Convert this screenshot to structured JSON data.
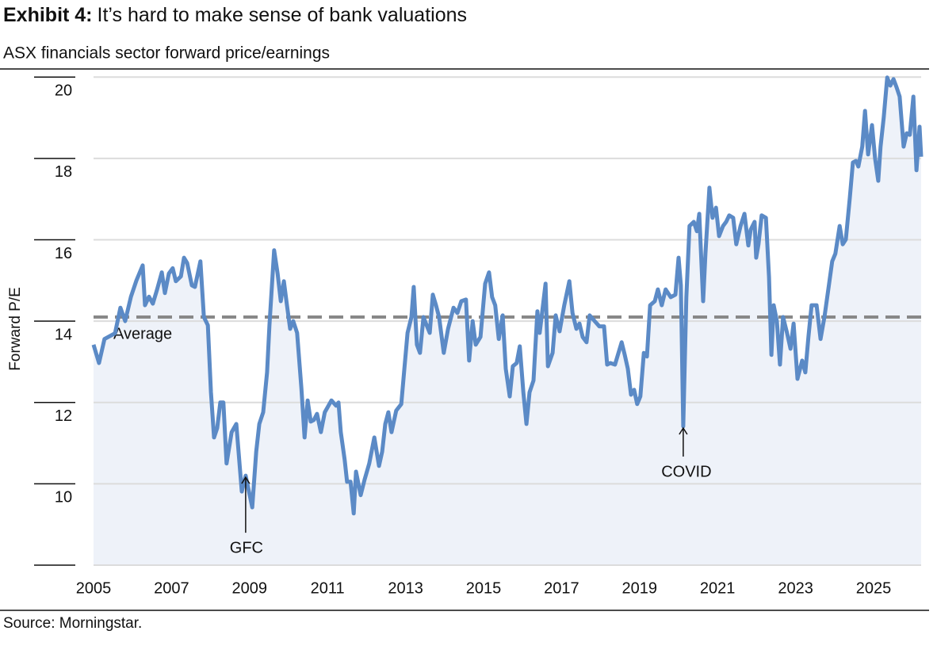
{
  "chart_data": {
    "type": "line",
    "title_lead": "Exhibit 4:",
    "title": "It’s hard to make sense of bank valuations",
    "subtitle": "ASX financials sector forward price/earnings",
    "y_label": "Forward P/E",
    "source": "Source: Morningstar.",
    "xlim": [
      2005,
      2026.22
    ],
    "xticks": [
      2005,
      2007,
      2009,
      2011,
      2013,
      2015,
      2017,
      2019,
      2021,
      2023,
      2025
    ],
    "ylim": [
      8,
      20.2
    ],
    "yticks": [
      10,
      12,
      14,
      16,
      18,
      20
    ],
    "grid": true,
    "average": {
      "label": "Average",
      "value": 14.1,
      "color": "#888888"
    },
    "annotations": [
      {
        "text": "GFC",
        "x": 2008.9,
        "y": 10.2
      },
      {
        "text": "COVID",
        "x": 2020.12,
        "y": 11.41
      }
    ],
    "series": [
      {
        "name": "Forward P/E",
        "color": "#5b8ac6",
        "fill": "#eef2f9",
        "x": [
          2005.0,
          2005.14,
          2005.28,
          2005.55,
          2005.69,
          2005.81,
          2005.96,
          2006.1,
          2006.26,
          2006.32,
          2006.42,
          2006.52,
          2006.63,
          2006.75,
          2006.83,
          2006.93,
          2007.03,
          2007.11,
          2007.24,
          2007.32,
          2007.4,
          2007.52,
          2007.6,
          2007.74,
          2007.83,
          2007.93,
          2008.01,
          2008.09,
          2008.17,
          2008.25,
          2008.33,
          2008.41,
          2008.54,
          2008.66,
          2008.8,
          2008.9,
          2009.07,
          2009.17,
          2009.25,
          2009.35,
          2009.45,
          2009.51,
          2009.63,
          2009.72,
          2009.8,
          2009.88,
          2009.96,
          2010.04,
          2010.12,
          2010.22,
          2010.33,
          2010.41,
          2010.49,
          2010.57,
          2010.65,
          2010.73,
          2010.83,
          2010.93,
          2011.1,
          2011.22,
          2011.28,
          2011.34,
          2011.44,
          2011.5,
          2011.59,
          2011.67,
          2011.73,
          2011.85,
          2011.95,
          2012.07,
          2012.2,
          2012.32,
          2012.4,
          2012.48,
          2012.56,
          2012.64,
          2012.76,
          2012.89,
          2012.97,
          2013.05,
          2013.15,
          2013.21,
          2013.29,
          2013.37,
          2013.46,
          2013.54,
          2013.62,
          2013.7,
          2013.78,
          2013.86,
          2013.98,
          2014.09,
          2014.23,
          2014.33,
          2014.43,
          2014.55,
          2014.63,
          2014.72,
          2014.8,
          2014.92,
          2015.04,
          2015.14,
          2015.22,
          2015.3,
          2015.39,
          2015.49,
          2015.57,
          2015.67,
          2015.75,
          2015.85,
          2015.93,
          2016.02,
          2016.1,
          2016.18,
          2016.28,
          2016.38,
          2016.44,
          2016.59,
          2016.65,
          2016.77,
          2016.85,
          2016.95,
          2017.07,
          2017.2,
          2017.28,
          2017.38,
          2017.46,
          2017.54,
          2017.64,
          2017.72,
          2017.85,
          2017.97,
          2018.09,
          2018.17,
          2018.25,
          2018.37,
          2018.46,
          2018.54,
          2018.62,
          2018.7,
          2018.78,
          2018.86,
          2018.94,
          2019.02,
          2019.11,
          2019.19,
          2019.27,
          2019.39,
          2019.47,
          2019.57,
          2019.67,
          2019.8,
          2019.92,
          2020.0,
          2020.06,
          2020.12,
          2020.2,
          2020.28,
          2020.39,
          2020.47,
          2020.53,
          2020.63,
          2020.69,
          2020.79,
          2020.87,
          2020.96,
          2021.04,
          2021.14,
          2021.22,
          2021.3,
          2021.4,
          2021.48,
          2021.59,
          2021.69,
          2021.79,
          2021.85,
          2021.95,
          2021.99,
          2022.05,
          2022.13,
          2022.24,
          2022.32,
          2022.38,
          2022.44,
          2022.52,
          2022.6,
          2022.68,
          2022.78,
          2022.87,
          2022.95,
          2023.05,
          2023.17,
          2023.25,
          2023.33,
          2023.41,
          2023.54,
          2023.64,
          2023.74,
          2023.86,
          2023.94,
          2024.02,
          2024.13,
          2024.21,
          2024.29,
          2024.39,
          2024.47,
          2024.55,
          2024.61,
          2024.71,
          2024.78,
          2024.86,
          2024.96,
          2025.04,
          2025.12,
          2025.18,
          2025.26,
          2025.35,
          2025.43,
          2025.51,
          2025.59,
          2025.67,
          2025.77,
          2025.85,
          2025.93,
          2026.02,
          2026.1,
          2026.18,
          2026.22
        ],
        "values": [
          13.42,
          12.97,
          13.56,
          13.7,
          14.33,
          14.0,
          14.6,
          15.0,
          15.37,
          14.39,
          14.6,
          14.43,
          14.78,
          15.2,
          14.69,
          15.17,
          15.3,
          14.98,
          15.1,
          15.56,
          15.43,
          14.88,
          14.84,
          15.47,
          14.1,
          13.9,
          12.25,
          11.14,
          11.37,
          12.0,
          12.0,
          10.5,
          11.27,
          11.47,
          9.81,
          10.2,
          9.42,
          10.79,
          11.47,
          11.76,
          12.74,
          13.9,
          15.74,
          15.17,
          14.49,
          14.98,
          14.39,
          13.81,
          14.0,
          13.71,
          12.35,
          11.14,
          12.05,
          11.53,
          11.57,
          11.72,
          11.27,
          11.76,
          12.05,
          11.92,
          12.0,
          11.27,
          10.59,
          10.05,
          10.05,
          9.27,
          10.3,
          9.72,
          10.1,
          10.5,
          11.14,
          10.44,
          10.79,
          11.47,
          11.76,
          11.27,
          11.8,
          11.96,
          12.83,
          13.71,
          14.1,
          14.84,
          13.42,
          13.22,
          14.1,
          13.9,
          13.71,
          14.65,
          14.39,
          14.1,
          13.22,
          13.81,
          14.33,
          14.2,
          14.49,
          14.53,
          13.03,
          14.0,
          13.42,
          13.61,
          14.92,
          15.2,
          14.59,
          14.39,
          13.56,
          14.14,
          12.83,
          12.15,
          12.89,
          12.97,
          13.38,
          12.25,
          11.47,
          12.25,
          12.54,
          14.24,
          13.71,
          14.92,
          12.89,
          13.22,
          14.14,
          13.75,
          14.39,
          14.98,
          14.2,
          13.81,
          13.94,
          13.61,
          13.48,
          14.14,
          14.0,
          13.87,
          13.87,
          12.93,
          12.97,
          12.93,
          13.22,
          13.48,
          13.17,
          12.83,
          12.19,
          12.31,
          11.96,
          12.15,
          13.22,
          13.13,
          14.39,
          14.49,
          14.78,
          14.39,
          14.78,
          14.59,
          14.65,
          15.56,
          14.88,
          11.41,
          14.59,
          16.34,
          16.44,
          16.21,
          16.64,
          14.49,
          15.66,
          17.28,
          16.54,
          16.79,
          16.09,
          16.34,
          16.44,
          16.6,
          16.54,
          15.89,
          16.34,
          16.64,
          15.86,
          16.25,
          16.44,
          15.56,
          15.89,
          16.6,
          16.54,
          15.08,
          13.17,
          14.39,
          14.0,
          12.93,
          14.1,
          13.71,
          13.32,
          13.94,
          12.58,
          13.03,
          12.74,
          13.61,
          14.39,
          14.39,
          13.56,
          14.1,
          14.92,
          15.47,
          15.66,
          16.34,
          15.89,
          16.01,
          17.03,
          17.9,
          17.94,
          17.8,
          18.29,
          19.17,
          18.1,
          18.82,
          18.0,
          17.45,
          18.29,
          19.01,
          19.99,
          19.79,
          19.95,
          19.75,
          19.52,
          18.29,
          18.62,
          18.58,
          19.52,
          17.71,
          18.78,
          18.04
        ]
      }
    ]
  }
}
